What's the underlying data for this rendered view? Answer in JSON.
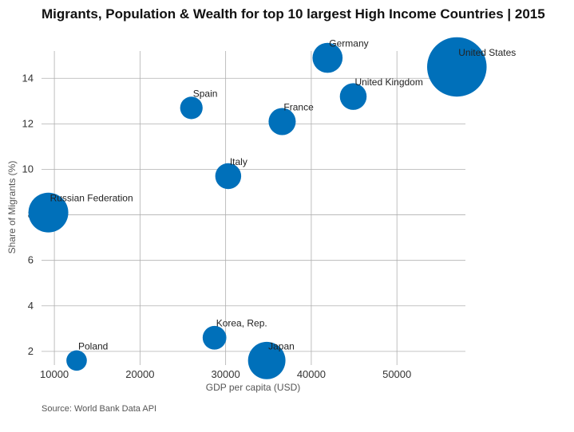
{
  "chart_data": {
    "type": "scatter",
    "title": "Migrants, Population & Wealth for top 10 largest High Income Countries | 2015",
    "xlabel": "GDP per capita (USD)",
    "ylabel": "Share of Migrants (%)",
    "xlim": [
      8500,
      58000
    ],
    "ylim": [
      1.4,
      15.2
    ],
    "xticks": [
      10000,
      20000,
      30000,
      40000,
      50000
    ],
    "yticks": [
      2,
      4,
      6,
      8,
      10,
      12,
      14
    ],
    "grid": true,
    "bubble_color": "#0070BA",
    "points": [
      {
        "label": "United States",
        "x": 57000,
        "y": 14.5,
        "size": 321
      },
      {
        "label": "Germany",
        "x": 41900,
        "y": 14.9,
        "size": 82
      },
      {
        "label": "United Kingdom",
        "x": 44900,
        "y": 13.2,
        "size": 65
      },
      {
        "label": "Spain",
        "x": 26000,
        "y": 12.7,
        "size": 46
      },
      {
        "label": "France",
        "x": 36600,
        "y": 12.1,
        "size": 67
      },
      {
        "label": "Italy",
        "x": 30300,
        "y": 9.7,
        "size": 61
      },
      {
        "label": "Russian Federation",
        "x": 9300,
        "y": 8.1,
        "size": 144
      },
      {
        "label": "Korea, Rep.",
        "x": 28700,
        "y": 2.6,
        "size": 51
      },
      {
        "label": "Poland",
        "x": 12600,
        "y": 1.6,
        "size": 38
      },
      {
        "label": "Japan",
        "x": 34800,
        "y": 1.6,
        "size": 127
      }
    ]
  },
  "source_note": "Source: World Bank Data API"
}
